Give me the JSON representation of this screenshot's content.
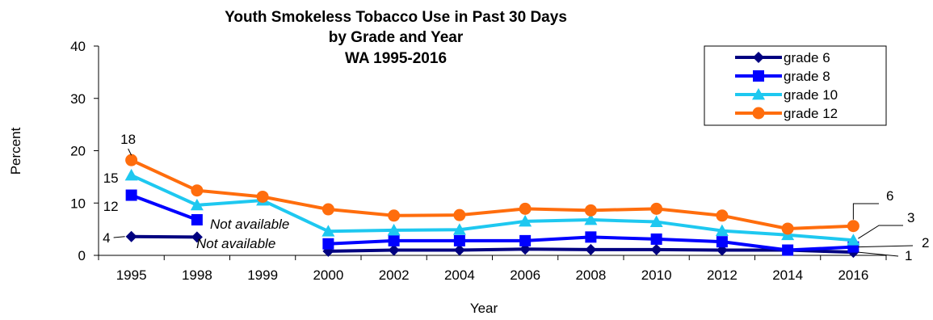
{
  "chart_data": {
    "type": "line",
    "title": [
      "Youth Smokeless Tobacco Use in Past 30 Days",
      "by Grade and Year",
      "WA 1995-2016"
    ],
    "xlabel": "Year",
    "ylabel": "Percent",
    "ylim": [
      0,
      40
    ],
    "yticks": [
      "0",
      "10",
      "20",
      "30",
      "40"
    ],
    "categories": [
      "1995",
      "1998",
      "1999",
      "2000",
      "2002",
      "2004",
      "2006",
      "2008",
      "2010",
      "2012",
      "2014",
      "2016"
    ],
    "grid": false,
    "legend_position": "top-right",
    "series": [
      {
        "name": "grade 6",
        "color": "#000080",
        "marker": "diamond",
        "values": [
          3.6,
          3.5,
          null,
          0.8,
          1.0,
          1.0,
          1.2,
          1.1,
          1.1,
          1.0,
          1.0,
          0.6
        ]
      },
      {
        "name": "grade 8",
        "color": "#0000ff",
        "marker": "square",
        "values": [
          11.5,
          6.8,
          null,
          2.2,
          2.8,
          2.8,
          2.8,
          3.5,
          3.1,
          2.6,
          1.0,
          1.6
        ]
      },
      {
        "name": "grade 10",
        "color": "#1ec8f0",
        "marker": "triangle",
        "values": [
          15.3,
          9.6,
          10.5,
          4.6,
          4.8,
          4.9,
          6.5,
          6.8,
          6.4,
          4.7,
          3.9,
          2.9
        ]
      },
      {
        "name": "grade 12",
        "color": "#ff6d0d",
        "marker": "circle",
        "values": [
          18.2,
          12.4,
          11.2,
          8.8,
          7.6,
          7.7,
          8.9,
          8.6,
          8.9,
          7.6,
          5.1,
          5.6
        ]
      }
    ],
    "annotations": {
      "left_labels": [
        "18",
        "15",
        "12",
        "4"
      ],
      "right_labels": [
        "6",
        "3",
        "2",
        "1"
      ],
      "not_available_1": "Not available",
      "not_available_2": "Not available"
    }
  }
}
